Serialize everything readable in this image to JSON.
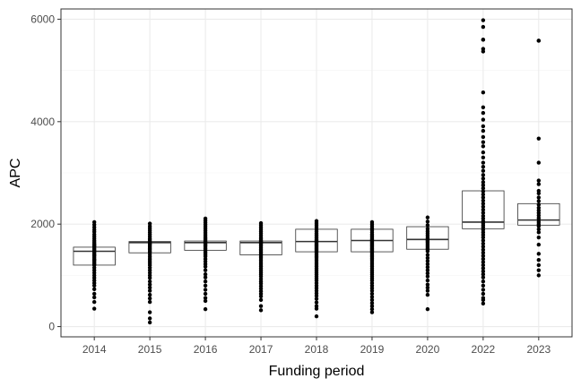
{
  "chart_data": {
    "type": "boxplot",
    "xlabel": "Funding period",
    "ylabel": "APC",
    "categories": [
      "2014",
      "2015",
      "2016",
      "2017",
      "2018",
      "2019",
      "2020",
      "2022",
      "2023"
    ],
    "ylim": [
      -200,
      6200
    ],
    "yticks": [
      0,
      2000,
      4000,
      6000
    ],
    "ytick_labels": [
      "0",
      "2000",
      "4000",
      "6000"
    ],
    "grid": true,
    "boxes": [
      {
        "q1": 1200,
        "median": 1470,
        "q3": 1550
      },
      {
        "q1": 1440,
        "median": 1640,
        "q3": 1660
      },
      {
        "q1": 1490,
        "median": 1640,
        "q3": 1670
      },
      {
        "q1": 1400,
        "median": 1640,
        "q3": 1670
      },
      {
        "q1": 1460,
        "median": 1660,
        "q3": 1900
      },
      {
        "q1": 1460,
        "median": 1680,
        "q3": 1900
      },
      {
        "q1": 1510,
        "median": 1700,
        "q3": 1950
      },
      {
        "q1": 1910,
        "median": 2040,
        "q3": 2650
      },
      {
        "q1": 1980,
        "median": 2080,
        "q3": 2400
      }
    ],
    "points": [
      [
        2040,
        1990,
        1940,
        1890,
        1850,
        1800,
        1760,
        1720,
        1680,
        1650,
        1620,
        1600,
        1580,
        1560,
        1530,
        1500,
        1480,
        1450,
        1420,
        1400,
        1380,
        1350,
        1320,
        1300,
        1280,
        1250,
        1220,
        1200,
        1150,
        1100,
        1050,
        1000,
        950,
        900,
        850,
        800,
        730,
        640,
        570,
        480,
        350
      ],
      [
        2010,
        1960,
        1920,
        1880,
        1840,
        1800,
        1760,
        1720,
        1690,
        1660,
        1630,
        1610,
        1590,
        1560,
        1530,
        1500,
        1470,
        1440,
        1400,
        1360,
        1320,
        1280,
        1240,
        1200,
        1150,
        1100,
        1050,
        1000,
        950,
        880,
        820,
        760,
        700,
        620,
        550,
        480,
        280,
        160,
        80
      ],
      [
        2110,
        2070,
        2030,
        1990,
        1950,
        1910,
        1870,
        1830,
        1790,
        1750,
        1720,
        1690,
        1660,
        1640,
        1620,
        1600,
        1580,
        1550,
        1520,
        1490,
        1460,
        1430,
        1400,
        1370,
        1320,
        1270,
        1220,
        1170,
        1100,
        1020,
        960,
        880,
        800,
        720,
        640,
        560,
        500,
        340
      ],
      [
        2020,
        1980,
        1940,
        1900,
        1860,
        1820,
        1780,
        1740,
        1710,
        1680,
        1660,
        1640,
        1620,
        1600,
        1570,
        1540,
        1510,
        1480,
        1450,
        1420,
        1400,
        1370,
        1340,
        1300,
        1260,
        1220,
        1180,
        1140,
        1100,
        1060,
        1020,
        980,
        930,
        880,
        840,
        790,
        740,
        690,
        640,
        590,
        520,
        400,
        320
      ],
      [
        2060,
        2020,
        1980,
        1940,
        1900,
        1860,
        1820,
        1790,
        1760,
        1730,
        1700,
        1680,
        1660,
        1640,
        1620,
        1600,
        1580,
        1560,
        1540,
        1520,
        1500,
        1480,
        1460,
        1430,
        1400,
        1370,
        1340,
        1300,
        1260,
        1220,
        1180,
        1140,
        1100,
        1060,
        1020,
        980,
        940,
        900,
        850,
        800,
        750,
        700,
        650,
        600,
        540,
        470,
        400,
        350,
        200
      ],
      [
        2040,
        2000,
        1960,
        1920,
        1880,
        1840,
        1800,
        1770,
        1740,
        1710,
        1690,
        1670,
        1650,
        1630,
        1610,
        1590,
        1570,
        1550,
        1530,
        1510,
        1490,
        1470,
        1450,
        1420,
        1390,
        1360,
        1330,
        1300,
        1260,
        1220,
        1180,
        1140,
        1100,
        1060,
        1020,
        980,
        940,
        900,
        850,
        800,
        750,
        700,
        640,
        580,
        520,
        460,
        400,
        340,
        280
      ],
      [
        2130,
        2050,
        1980,
        1910,
        1860,
        1820,
        1780,
        1740,
        1710,
        1690,
        1670,
        1650,
        1620,
        1590,
        1560,
        1530,
        1500,
        1470,
        1400,
        1340,
        1280,
        1220,
        1160,
        1100,
        1040,
        980,
        900,
        820,
        760,
        700,
        620,
        340
      ],
      [
        5980,
        5850,
        5600,
        5600,
        5420,
        5370,
        4570,
        4280,
        4170,
        4040,
        3910,
        3820,
        3700,
        3600,
        3520,
        3400,
        3300,
        3200,
        3120,
        3040,
        2960,
        2890,
        2820,
        2760,
        2700,
        2640,
        2580,
        2520,
        2460,
        2400,
        2340,
        2280,
        2220,
        2160,
        2110,
        2060,
        2020,
        1980,
        1940,
        1890,
        1840,
        1790,
        1740,
        1680,
        1620,
        1560,
        1500,
        1440,
        1380,
        1320,
        1260,
        1200,
        1140,
        1080,
        1020,
        960,
        880,
        800,
        720,
        640,
        560,
        520,
        450
      ],
      [
        5580,
        5580,
        3670,
        3200,
        2850,
        2780,
        2650,
        2600,
        2520,
        2450,
        2380,
        2320,
        2270,
        2220,
        2170,
        2120,
        2080,
        2040,
        2000,
        1960,
        1900,
        1840,
        1740,
        1600,
        1420,
        1300,
        1200,
        1100,
        1000
      ]
    ]
  }
}
